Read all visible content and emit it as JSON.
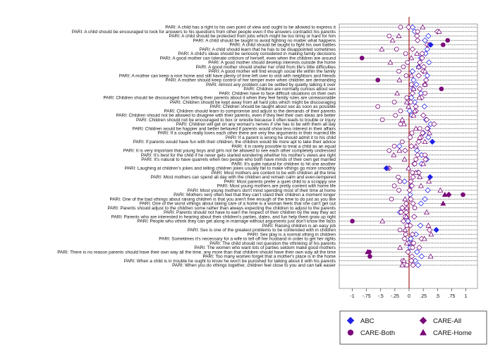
{
  "chart_data": {
    "type": "scatter",
    "title": "",
    "xlabel": "",
    "ylabel": "",
    "xlim": [
      -1.1,
      1.1
    ],
    "xticks": [
      -1,
      -0.75,
      -0.5,
      -0.25,
      0,
      0.25,
      0.5,
      0.75,
      1
    ],
    "xtick_labels": [
      "-1",
      "-.75",
      "-.5",
      "-.25",
      "0",
      ".25",
      ".5",
      ".75",
      "1"
    ],
    "reference_line_x": 0,
    "grid": "dotted horizontal lines per item",
    "legend_position": "bottom-right",
    "items": [
      "PARI: A child has a right to his own point of view and ought to be allowed to express it",
      "PARI: A child should be encouraged to look for answers to his questions from other people even if the answers contradict his parents",
      "PARI: A child should be protected from jobs which might be too tiring or hard for him",
      "PARI: A child should be taught to avoid fighting no matter what happens",
      "PARI: A child should be taught to fight his own battles",
      "PARI: A child should learn that he has to be disappointed sometimes",
      "PARI: A child's ideas should be seriously considered in making family decisions",
      "PARI: A good mother can tolerate criticism of herself, even when the children are around",
      "PARI: A good mother should develop interests outside the home",
      "PARI: A good mother should shelter her child from life's little difficulties",
      "PARI: A good mother will find enough social life within the family",
      "PARI: A mother can keep a nice home and still have plenty of time left over to visit with neighbors and friends",
      "PARI: A mother should keep control of her temper even when children are demanding",
      "PARI: Almost any problem can be settled by quietly talking it over",
      "PARI: Children are normally curious about sex",
      "PARI: Children have to face difficult situations on their own",
      "PARI: Children should be discouraged from telling their parents about it when they feel family rules are unreasonable",
      "PARI: Children should be kept away from all hard jobs which might be discouraging",
      "PARI: Children should be taught about sex as soon as possible",
      "PARI: Children should learn to compromise and adjust to the demands of their parents",
      "PARI: Children should not be allowed to disagree with their parents, even if they feel their own ideas are better",
      "PARI: Children should not be encouraged to box or wrestle because it often leads to trouble or injury",
      "PARI: Children will get on any woman's nerves if she has to be with them all day",
      "PARI: Children would be happier and better behaved if parents would show less interest in their affairs",
      "PARI: If a couple really loves each other there are very few arguments in their married life",
      "PARI: If a parent is wrong he should admit it to his child",
      "PARI: If parents would have fun with their children, the children would be more apt to take their advice",
      "PARI: It is rarely possible to treat a child as an equal",
      "PARI: It is very important that young boys and girls not be allowed to see each other completely undressed",
      "PARI: It's best for the child if he never gets started wondering whether his mother's views are right",
      "PARI: It's natural to have quarrels when two people who both have minds of their own get married",
      "PARI: It's quite natural for children to hit one another",
      "PARI: Laughing at children's jokes and telling children jokes usually fail to make vthings go more smoothly",
      "PARI: Most mothers are content to be with children all the time",
      "PARI: Most mothers can spend all day with the children and remain calm and even-tempered",
      "PARI: Most parents prefer a quiet child to a scrappy one",
      "PARI: Most young mothers are pretty content with home life",
      "PARI: Most young mothers don't mind spending most of their time at home",
      "PARI: Mothers very often feel that they can't stand their children a moment longer",
      "PARI: One of the bad vthings about raising children is that you aren't free enough of the time to do just as you like",
      "PARI: One of the worst vthings about taking care of a home is a woman feels that she can't get out",
      "PARI: Parents should adjust to the children some rather than always expecting the children to adjust to the parents",
      "PARI: Parents should not have to earn the respect of their children by the way they act",
      "PARI: Parents who are interested in hearing about their children's parties, dates, and fun help them grow up right",
      "PARI: People who vthink they can get along in marriage without arguments just don't know the facts",
      "PARI: Raising children is an easy job",
      "PARI: Sex is one of the greatest problems to be contended with in children",
      "PARI: Sex play is a normal vthing in children",
      "PARI: Sometimes it's necessary for a wife to tell off her husband in order to get her rights",
      "PARI: The child should not question the vthinking of his parents",
      "PARI: The women who want lots of parties seldom make good mothers",
      "PARI: There is no reason parents should have their own way all the time, any more than that children should have their own way all the time",
      "PARI: Too many women forget that a mother's place is in the home",
      "PARI: When a child is in trouble he ought to know he won't be punished for talking about it with his parents",
      "PARI: When you do vthings together, children feel close to you and can talk easier"
    ],
    "series": [
      {
        "name": "ABC",
        "marker": "diamond",
        "color": "#1f1fe6",
        "values": [
          0.06,
          0.1,
          0.34,
          0.28,
          0.38,
          0.32,
          0.29,
          0.21,
          0.35,
          0.17,
          0.06,
          0.32,
          0.08,
          0.13,
          0.07,
          0.21,
          0.04,
          0.1,
          0.27,
          0.01,
          0.05,
          0.3,
          0.38,
          0.33,
          0.25,
          0.34,
          0.41,
          -0.17,
          0.14,
          0.22,
          0.31,
          0.22,
          -0.4,
          0.16,
          0.37,
          -0.08,
          0.04,
          0.33,
          0.02,
          0.28,
          0.21,
          -0.12,
          -0.16,
          -0.06,
          -0.02,
          0.2,
          0.48,
          0.12,
          0.03,
          -0.01,
          0.02,
          0.14,
          0.22,
          0.11,
          0.16
        ],
        "filled": [
          false,
          false,
          false,
          false,
          true,
          false,
          false,
          false,
          false,
          false,
          false,
          false,
          false,
          false,
          false,
          false,
          false,
          false,
          false,
          false,
          false,
          false,
          false,
          false,
          false,
          false,
          true,
          false,
          false,
          false,
          false,
          false,
          true,
          false,
          true,
          false,
          false,
          false,
          false,
          false,
          false,
          false,
          false,
          false,
          false,
          false,
          true,
          false,
          false,
          false,
          false,
          false,
          false,
          false,
          false
        ]
      },
      {
        "name": "CARE-All",
        "marker": "diamond",
        "color": "#7a0a7a",
        "values": [
          -0.01,
          0.5,
          0.14,
          0.15,
          0.32,
          0.06,
          0.23,
          0.23,
          0.19,
          0.26,
          0.25,
          0.17,
          0.3,
          0.28,
          0.19,
          0.06,
          0.22,
          0.03,
          0.12,
          0.12,
          0.25,
          0.31,
          0.44,
          0.32,
          0.24,
          0.21,
          0.17,
          0.04,
          -0.07,
          0.15,
          0.29,
          0.09,
          -0.35,
          0.17,
          0.07,
          0.03,
          0.05,
          0.01,
          0.7,
          0.03,
          0.07,
          -0.12,
          -0.05,
          0.09,
          -0.1,
          0.02,
          0.36,
          0.06,
          0.22,
          0.06,
          0.18,
          -0.02,
          0.05,
          0.04,
          0.07
        ],
        "filled": [
          false,
          false,
          false,
          false,
          false,
          false,
          false,
          false,
          false,
          false,
          false,
          false,
          false,
          false,
          false,
          false,
          false,
          false,
          false,
          false,
          false,
          false,
          false,
          false,
          false,
          false,
          false,
          false,
          false,
          false,
          false,
          false,
          false,
          false,
          false,
          false,
          false,
          false,
          true,
          false,
          false,
          false,
          false,
          false,
          false,
          false,
          false,
          false,
          false,
          false,
          false,
          false,
          false,
          false,
          false
        ]
      },
      {
        "name": "CARE-Both",
        "marker": "circle",
        "color": "#7a0a7a",
        "values": [
          -0.15,
          0.15,
          -0.35,
          0.68,
          0.6,
          -0.22,
          -0.06,
          -0.83,
          -0.03,
          -0.1,
          -0.18,
          -0.05,
          -0.55,
          0.04,
          0.57,
          0.28,
          -0.04,
          -0.26,
          -0.55,
          -0.15,
          -0.24,
          -0.47,
          -0.15,
          0.19,
          0.05,
          0.02,
          -0.12,
          -0.26,
          -0.35,
          0.28,
          0.12,
          0.1,
          -0.38,
          0.06,
          -0.19,
          -0.16,
          -0.26,
          -0.18,
          0.95,
          -0.31,
          -0.05,
          0.1,
          -0.14,
          -0.07,
          -1.0,
          -0.04,
          -0.16,
          -0.06,
          -0.08,
          0.08,
          0.06,
          -0.7,
          -0.69,
          -0.11,
          -0.04
        ],
        "filled": [
          false,
          false,
          false,
          true,
          true,
          false,
          false,
          true,
          false,
          false,
          false,
          false,
          true,
          false,
          true,
          false,
          false,
          false,
          false,
          false,
          false,
          false,
          false,
          false,
          false,
          false,
          false,
          false,
          false,
          false,
          false,
          false,
          false,
          false,
          false,
          false,
          false,
          false,
          true,
          false,
          false,
          false,
          false,
          false,
          true,
          false,
          false,
          false,
          false,
          false,
          false,
          true,
          true,
          false,
          false
        ]
      },
      {
        "name": "CARE-Home",
        "marker": "triangle",
        "color": "#7a0a7a",
        "values": [
          0.24,
          0.53,
          -0.18,
          -0.29,
          0.35,
          -0.48,
          0.14,
          0.04,
          -0.33,
          0.17,
          0.28,
          0.04,
          -0.17,
          0.28,
          0.08,
          -0.21,
          0.18,
          -0.04,
          -0.01,
          0.1,
          0.08,
          -0.12,
          -0.09,
          0.12,
          0.36,
          0.19,
          0.28,
          0.12,
          -0.17,
          -0.27,
          -0.08,
          0.25,
          -0.01,
          0.12,
          0.19,
          0.35,
          0.21,
          0.55,
          0.63,
          -0.07,
          0.6,
          -0.04,
          0.31,
          -0.05,
          -0.47,
          0.34,
          -0.07,
          0.39,
          0.27,
          -0.04,
          -0.16,
          -0.73,
          0.38,
          -0.09,
          -0.12
        ],
        "filled": [
          false,
          false,
          false,
          false,
          false,
          false,
          false,
          false,
          false,
          false,
          false,
          false,
          false,
          false,
          false,
          false,
          false,
          false,
          false,
          false,
          false,
          false,
          false,
          false,
          false,
          false,
          false,
          false,
          false,
          false,
          false,
          false,
          false,
          false,
          false,
          false,
          false,
          false,
          true,
          false,
          true,
          false,
          false,
          false,
          false,
          false,
          false,
          false,
          false,
          false,
          false,
          true,
          false,
          false,
          false
        ]
      }
    ]
  }
}
